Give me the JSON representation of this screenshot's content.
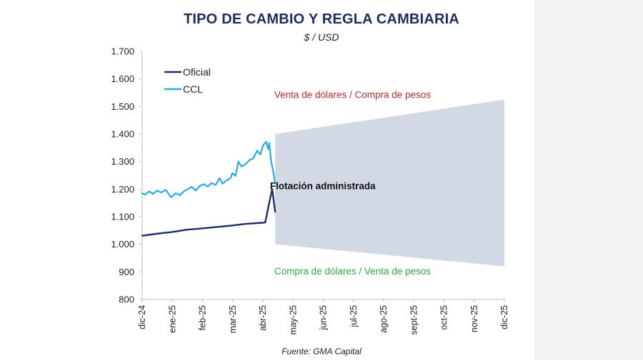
{
  "chart_data": {
    "type": "line",
    "title": "TIPO DE CAMBIO Y REGLA CAMBIARIA",
    "subtitle": "$ / USD",
    "source": "Fuente: GMA Capital",
    "x_tick_labels": [
      "dic-24",
      "ene-25",
      "feb-25",
      "mar-25",
      "abr-25",
      "may-25",
      "jun-25",
      "jul-25",
      "ago-25",
      "sept-25",
      "oct-25",
      "nov-25",
      "dic-25"
    ],
    "y_tick_labels": [
      "800",
      "900",
      "1.000",
      "1.100",
      "1.200",
      "1.300",
      "1.400",
      "1.500",
      "1.600",
      "1.700"
    ],
    "ylim": [
      800,
      1700
    ],
    "xlim": [
      "2024-12-01",
      "2025-12-01"
    ],
    "grid": false,
    "legend_position": "top-left",
    "series": [
      {
        "name": "Oficial",
        "color": "#1f2d6b",
        "points": [
          [
            "2024-12-01",
            1031
          ],
          [
            "2024-12-15",
            1038
          ],
          [
            "2025-01-01",
            1045
          ],
          [
            "2025-01-15",
            1053
          ],
          [
            "2025-02-01",
            1058
          ],
          [
            "2025-02-15",
            1063
          ],
          [
            "2025-03-01",
            1068
          ],
          [
            "2025-03-15",
            1074
          ],
          [
            "2025-04-01",
            1078
          ],
          [
            "2025-04-04",
            1079
          ],
          [
            "2025-04-08",
            1150
          ],
          [
            "2025-04-11",
            1200
          ],
          [
            "2025-04-14",
            1118
          ]
        ]
      },
      {
        "name": "CCL",
        "color": "#29abe2",
        "points": [
          [
            "2024-12-01",
            1185
          ],
          [
            "2024-12-04",
            1180
          ],
          [
            "2024-12-08",
            1192
          ],
          [
            "2024-12-12",
            1183
          ],
          [
            "2024-12-16",
            1195
          ],
          [
            "2024-12-20",
            1188
          ],
          [
            "2024-12-25",
            1197
          ],
          [
            "2024-12-30",
            1170
          ],
          [
            "2025-01-04",
            1185
          ],
          [
            "2025-01-08",
            1178
          ],
          [
            "2025-01-12",
            1192
          ],
          [
            "2025-01-16",
            1200
          ],
          [
            "2025-01-20",
            1208
          ],
          [
            "2025-01-24",
            1195
          ],
          [
            "2025-01-28",
            1212
          ],
          [
            "2025-02-01",
            1218
          ],
          [
            "2025-02-05",
            1210
          ],
          [
            "2025-02-09",
            1222
          ],
          [
            "2025-02-13",
            1215
          ],
          [
            "2025-02-17",
            1240
          ],
          [
            "2025-02-20",
            1220
          ],
          [
            "2025-02-24",
            1232
          ],
          [
            "2025-02-28",
            1240
          ],
          [
            "2025-03-02",
            1258
          ],
          [
            "2025-03-05",
            1248
          ],
          [
            "2025-03-08",
            1300
          ],
          [
            "2025-03-11",
            1282
          ],
          [
            "2025-03-15",
            1290
          ],
          [
            "2025-03-19",
            1305
          ],
          [
            "2025-03-23",
            1312
          ],
          [
            "2025-03-27",
            1340
          ],
          [
            "2025-03-30",
            1325
          ],
          [
            "2025-04-02",
            1360
          ],
          [
            "2025-04-05",
            1372
          ],
          [
            "2025-04-07",
            1345
          ],
          [
            "2025-04-08",
            1368
          ],
          [
            "2025-04-10",
            1300
          ],
          [
            "2025-04-12",
            1265
          ],
          [
            "2025-04-14",
            1220
          ]
        ]
      }
    ],
    "band": {
      "label": "Flotación administrada",
      "color": "#d3d9e4",
      "start": "2025-04-14",
      "end": "2025-12-01",
      "upper": [
        1400,
        1525
      ],
      "lower": [
        1000,
        920
      ]
    },
    "annotations": [
      {
        "text": "Venta de dólares / Compra de pesos",
        "color": "#c0282d",
        "x": "2025-07-01",
        "y": 1530
      },
      {
        "text": "Flotación administrada",
        "color": "#111111",
        "x": "2025-06-01",
        "y": 1200
      },
      {
        "text": "Compra de dólares / Venta de pesos",
        "color": "#2eaa4a",
        "x": "2025-07-01",
        "y": 890
      }
    ]
  }
}
